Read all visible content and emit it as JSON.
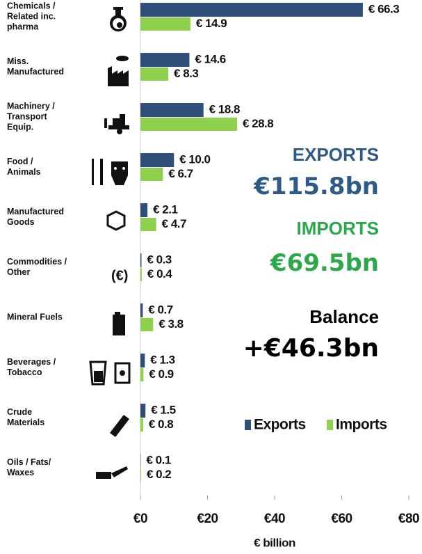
{
  "chart_data": {
    "type": "bar",
    "orientation": "horizontal",
    "categories": [
      "Chemicals /\nRelated inc.\npharma",
      "Miss.\nManufactured",
      "Machinery /\nTransport\nEquip.",
      "Food /\nAnimals",
      "Manufactured\nGoods",
      "Commodities /\nOther",
      "Mineral Fuels",
      "Beverages /\nTobacco",
      "Crude\nMaterials",
      "Oils / Fats/\nWaxes"
    ],
    "series": [
      {
        "name": "Exports",
        "color": "#2e4f7a",
        "values": [
          66.3,
          14.6,
          18.8,
          10.0,
          2.1,
          0.3,
          0.7,
          1.3,
          1.5,
          0.1
        ],
        "value_labels": [
          "€ 66.3",
          "€ 14.6",
          "€ 18.8",
          "€ 10.0",
          "€ 2.1",
          "€ 0.3",
          "€ 0.7",
          "€ 1.3",
          "€ 1.5",
          "€ 0.1"
        ]
      },
      {
        "name": "Imports",
        "color": "#8fd14f",
        "values": [
          14.9,
          8.3,
          28.8,
          6.7,
          4.7,
          0.4,
          3.8,
          0.9,
          0.8,
          0.2
        ],
        "value_labels": [
          "€ 14.9",
          "€ 8.3",
          "€ 28.8",
          "€ 6.7",
          "€ 4.7",
          "€ 0.4",
          "€ 3.8",
          "€ 0.9",
          "€ 0.8",
          "€ 0.2"
        ]
      }
    ],
    "xlim": [
      0,
      80
    ],
    "xticks": [
      {
        "value": 0,
        "label": "€0"
      },
      {
        "value": 20,
        "label": "€20"
      },
      {
        "value": 40,
        "label": "€40"
      },
      {
        "value": 60,
        "label": "€60"
      },
      {
        "value": 80,
        "label": "€80"
      }
    ],
    "xlabel": "€ billion",
    "annotations": [
      {
        "text": "EXPORTS",
        "color": "#2e5a88"
      },
      {
        "text": "€115.8bn",
        "color": "#2e5a88"
      },
      {
        "text": "IMPORTS",
        "color": "#2aa84a"
      },
      {
        "text": "€69.5bn",
        "color": "#2aa84a"
      },
      {
        "text": "Balance",
        "color": "#000000"
      },
      {
        "text": "+€46.3bn",
        "color": "#000000"
      }
    ]
  }
}
